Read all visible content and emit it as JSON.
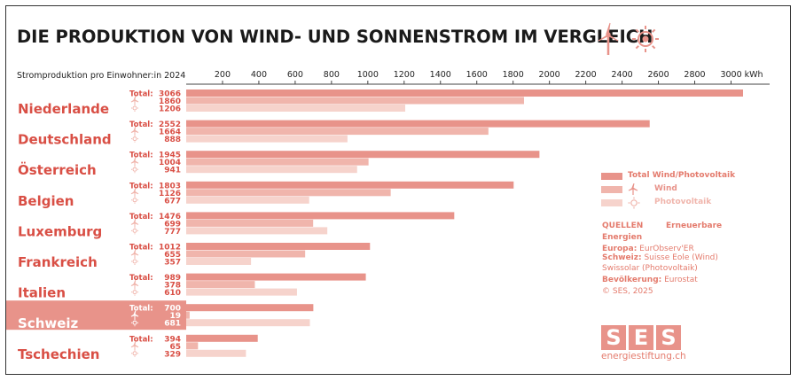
{
  "title": "DIE PRODUKTION VON WIND- UND SONNENSTROM IM VERGLEICH",
  "subtitle": "Stromproduktion pro Einwohner:in 2024",
  "icons": [
    "wind-turbine-icon",
    "sun-icon"
  ],
  "colors": {
    "total": "#e8938a",
    "wind": "#f0b5ac",
    "solar": "#f6d3cc",
    "country_text": "#d94f45",
    "highlight_bg": "#e8938a",
    "highlight_text": "#ffffff",
    "accent": "#e47b6d"
  },
  "chart_data": {
    "type": "bar",
    "orientation": "horizontal",
    "unit": "kWh",
    "xlim": [
      0,
      3200
    ],
    "x_ticks": [
      200,
      400,
      600,
      800,
      1000,
      1200,
      1400,
      1600,
      1800,
      2000,
      2200,
      2400,
      2600,
      2800,
      3000
    ],
    "x_tick_labels": [
      "200",
      "400",
      "600",
      "800",
      "1000",
      "1200",
      "1400",
      "1600",
      "1800",
      "2000",
      "2200",
      "2400",
      "2600",
      "2800",
      "3000 kWh"
    ],
    "row_label_total": "Total:",
    "categories": [
      "Niederlande",
      "Deutschland",
      "Österreich",
      "Belgien",
      "Luxemburg",
      "Frankreich",
      "Italien",
      "Schweiz",
      "Tschechien"
    ],
    "highlighted_category": "Schweiz",
    "series": [
      {
        "name": "Total Wind/Photovoltaik",
        "values": [
          3066,
          2552,
          1945,
          1803,
          1476,
          1012,
          989,
          700,
          394
        ]
      },
      {
        "name": "Wind",
        "values": [
          1860,
          1664,
          1004,
          1126,
          699,
          655,
          378,
          19,
          65
        ]
      },
      {
        "name": "Photovoltaik",
        "values": [
          1206,
          888,
          941,
          677,
          777,
          357,
          610,
          681,
          329
        ]
      }
    ],
    "legend_position": "right"
  },
  "sources": {
    "heading": "QUELLEN",
    "heading_suffix": "Erneuerbare",
    "line1": "Energien",
    "europa_label": "Europa:",
    "europa_value": "EurObserv'ER",
    "schweiz_label": "Schweiz:",
    "schweiz_value": "Suisse Eole (Wind)",
    "schweiz_value2": "Swissolar (Photovoltaik)",
    "bev_label": "Bevölkerung:",
    "bev_value": "Eurostat",
    "copyright": "© SES, 2025"
  },
  "logo": {
    "letters": [
      "S",
      "E",
      "S"
    ],
    "url": "energiestiftung.ch"
  }
}
